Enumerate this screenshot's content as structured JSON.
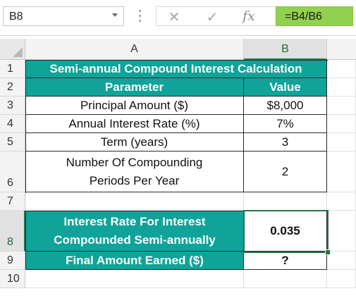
{
  "formula_bar": {
    "name_box": "B8",
    "cancel_icon": "✕",
    "enter_icon": "✓",
    "fx_label": "fx",
    "formula": "=B4/B6"
  },
  "columns": [
    {
      "label": "A"
    },
    {
      "label": "B"
    }
  ],
  "rows": [
    {
      "num": "1"
    },
    {
      "num": "2"
    },
    {
      "num": "3"
    },
    {
      "num": "4"
    },
    {
      "num": "5"
    },
    {
      "num": "6"
    },
    {
      "num": "7"
    },
    {
      "num": "8"
    },
    {
      "num": "9"
    },
    {
      "num": "10"
    }
  ],
  "cells": {
    "title": "Semi-annual Compound Interest Calculation",
    "hdr_parameter": "Parameter",
    "hdr_value": "Value",
    "a3": "Principal Amount ($)",
    "b3": "$8,000",
    "a4": "Annual Interest Rate (%)",
    "b4": "7%",
    "a5": "Term (years)",
    "b5": "3",
    "a6_line1": "Number Of Compounding",
    "a6_line2": "Periods Per Year",
    "b6": "2",
    "a8_line1": "Interest Rate For Interest",
    "a8_line2": "Compounded Semi-annually",
    "b8": "0.035",
    "a9": "Final Amount Earned ($)",
    "b9": "?"
  },
  "colors": {
    "teal": "#0fa39a",
    "formula_highlight": "#92d050",
    "selection": "#217346"
  }
}
